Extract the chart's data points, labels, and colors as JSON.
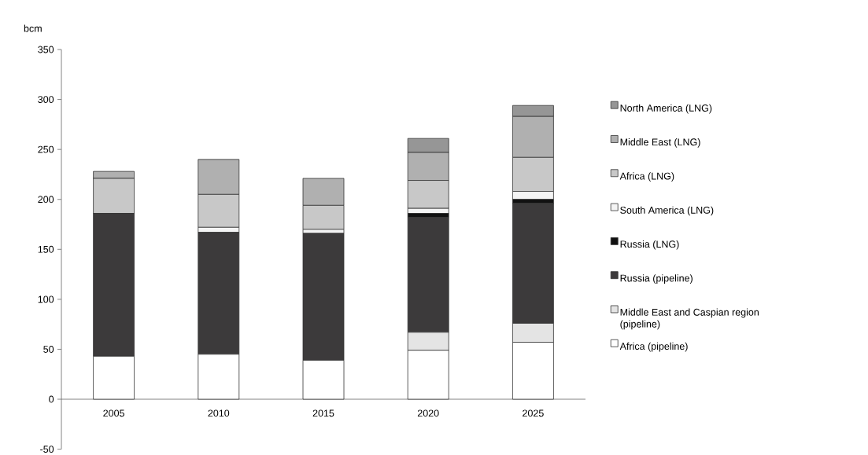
{
  "chart_data": {
    "type": "bar",
    "stacked": true,
    "ylabel": "bcm",
    "categories": [
      "2005",
      "2010",
      "2015",
      "2020",
      "2025"
    ],
    "series": [
      {
        "name": "Africa (pipeline)",
        "color": "#ffffff",
        "values": [
          43,
          45,
          39,
          49,
          57
        ]
      },
      {
        "name": "Middle East and Caspian region (pipeline)",
        "color": "#e4e4e4",
        "values": [
          0,
          0,
          0,
          18,
          19
        ]
      },
      {
        "name": "Russia (pipeline)",
        "color": "#3c3a3b",
        "values": [
          143,
          122,
          127,
          115,
          120
        ]
      },
      {
        "name": "Russia (LNG)",
        "color": "#111111",
        "values": [
          0,
          0,
          0,
          4,
          4
        ]
      },
      {
        "name": "South America (LNG)",
        "color": "#f4f4f4",
        "values": [
          0,
          5,
          4,
          5,
          8
        ]
      },
      {
        "name": "Africa (LNG)",
        "color": "#c8c8c8",
        "values": [
          35,
          33,
          24,
          28,
          34
        ]
      },
      {
        "name": "Middle East (LNG)",
        "color": "#b0b0b0",
        "values": [
          7,
          35,
          27,
          28,
          41
        ]
      },
      {
        "name": "North America (LNG)",
        "color": "#969696",
        "values": [
          0,
          0,
          0,
          14,
          11
        ]
      }
    ],
    "ylim": [
      -50,
      350
    ],
    "yticks": [
      -50,
      0,
      50,
      100,
      150,
      200,
      250,
      300,
      350
    ],
    "legend": "right",
    "grid": false
  }
}
